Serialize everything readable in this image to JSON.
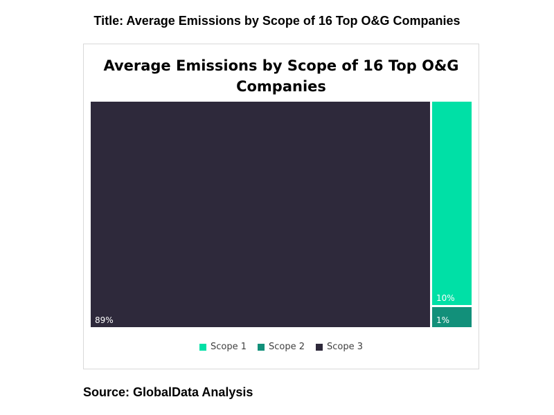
{
  "page": {
    "title": "Title: Average Emissions by Scope of 16 Top O&G Companies",
    "source": "Source: GlobalData Analysis"
  },
  "chart_data": {
    "type": "treemap",
    "title_lines": [
      "Average Emissions by Scope of 16 Top O&G",
      "Companies"
    ],
    "unit": "%",
    "series": [
      {
        "name": "Scope 1",
        "value": 10,
        "label": "10%",
        "color": "#00e0a6"
      },
      {
        "name": "Scope 2",
        "value": 1,
        "label": "1%",
        "color": "#12907a"
      },
      {
        "name": "Scope 3",
        "value": 89,
        "label": "89%",
        "color": "#2e293b"
      }
    ],
    "legend_position": "bottom"
  }
}
